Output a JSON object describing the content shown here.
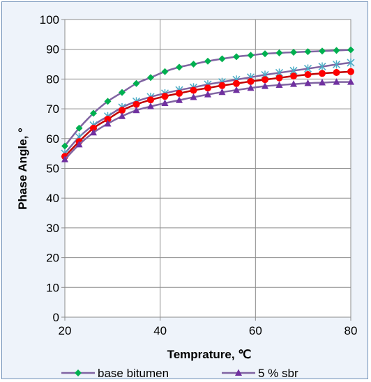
{
  "chart_data": {
    "type": "line",
    "xlabel": "Temprature, ℃",
    "ylabel": "Phase Angle, °",
    "xlim": [
      20,
      80
    ],
    "ylim": [
      0,
      100
    ],
    "x_ticks": [
      20,
      40,
      60,
      80
    ],
    "y_ticks": [
      0,
      10,
      20,
      30,
      40,
      50,
      60,
      70,
      80,
      90,
      100
    ],
    "grid": true,
    "legend_position": "bottom",
    "x": [
      20,
      23,
      26,
      29,
      32,
      35,
      38,
      41,
      44,
      47,
      50,
      53,
      56,
      59,
      62,
      65,
      68,
      71,
      74,
      77,
      80
    ],
    "series": [
      {
        "name": "base bitumen",
        "color": "#8064a2",
        "marker": "diamond",
        "marker_color": "#00b050",
        "values": [
          57.5,
          63.5,
          68.5,
          72.5,
          75.5,
          78.5,
          80.5,
          82.5,
          84,
          85,
          86,
          86.8,
          87.5,
          88,
          88.5,
          88.8,
          89,
          89.2,
          89.4,
          89.6,
          89.8
        ]
      },
      {
        "name": "",
        "color": "#8064a2",
        "marker": "asterisk",
        "marker_color": "#4bacc6",
        "values": [
          55,
          60.5,
          64.5,
          67.5,
          70.5,
          72.5,
          74,
          75.2,
          76.3,
          77.2,
          78.2,
          79,
          79.8,
          80.6,
          81.4,
          82.1,
          82.8,
          83.5,
          84.2,
          84.9,
          85.5
        ]
      },
      {
        "name": "",
        "color": "#c00000",
        "marker": "circle",
        "marker_color": "#ff0000",
        "values": [
          54,
          59,
          63.5,
          66.5,
          69.5,
          71.5,
          73,
          74.2,
          75.2,
          76.2,
          77,
          77.8,
          78.5,
          79.2,
          79.8,
          80.4,
          81,
          81.5,
          81.9,
          82.2,
          82.5
        ]
      },
      {
        "name": "5 % sbr",
        "color": "#8064a2",
        "marker": "triangle",
        "marker_color": "#7030a0",
        "values": [
          53,
          58,
          62,
          65,
          67.5,
          69.5,
          70.8,
          71.9,
          72.9,
          73.9,
          74.8,
          75.6,
          76.3,
          77,
          77.6,
          78,
          78.3,
          78.6,
          78.8,
          79,
          79
        ]
      }
    ]
  }
}
